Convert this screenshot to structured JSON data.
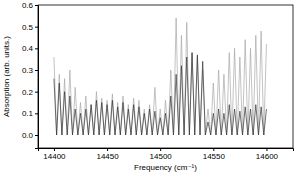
{
  "chart_data": {
    "type": "line",
    "x_label": "Frequency (cm⁻¹)",
    "y_label": "Absorption (arb. units.)",
    "xlim": [
      14385,
      14625
    ],
    "ylim": [
      -0.06,
      0.6
    ],
    "xticks": [
      14400,
      14450,
      14500,
      14550,
      14600
    ],
    "yticks": [
      {
        "value": 0,
        "label": "0.0"
      },
      {
        "value": 0.1,
        "label": "0.1"
      },
      {
        "value": 0.2,
        "label": "0.2"
      },
      {
        "value": 0.3,
        "label": "0.3"
      },
      {
        "value": 0.4,
        "label": "0.4"
      },
      {
        "value": 0.5,
        "label": "0.5"
      },
      {
        "value": 0.6,
        "label": "0.6"
      }
    ],
    "grid": false,
    "x": [
      14400,
      14402.5,
      14405,
      14407.5,
      14410,
      14412.5,
      14415,
      14417.5,
      14420,
      14422.5,
      14425,
      14427.5,
      14430,
      14432.5,
      14435,
      14437.5,
      14440,
      14442.5,
      14445,
      14447.5,
      14450,
      14452.5,
      14455,
      14457.5,
      14460,
      14462.5,
      14465,
      14467.5,
      14470,
      14472.5,
      14475,
      14477.5,
      14480,
      14482.5,
      14485,
      14487.5,
      14490,
      14492.5,
      14495,
      14497.5,
      14500,
      14502.5,
      14505,
      14507.5,
      14510,
      14512.5,
      14515,
      14517.5,
      14520,
      14522.5,
      14525,
      14527.5,
      14530,
      14532.5,
      14535,
      14537.5,
      14540,
      14542.5,
      14545,
      14547.5,
      14550,
      14552.5,
      14555,
      14557.5,
      14560,
      14562.5,
      14565,
      14567.5,
      14570,
      14572.5,
      14575,
      14577.5,
      14580,
      14582.5,
      14585,
      14587.5,
      14590,
      14592.5,
      14595,
      14597.5,
      14600
    ],
    "series": [
      {
        "color": "#a8a8a8",
        "values": [
          0.36,
          0,
          0.28,
          0,
          0.26,
          0,
          0.3,
          0,
          0.22,
          0,
          0.15,
          0,
          0.18,
          0,
          0.14,
          0,
          0.2,
          0,
          0.17,
          0,
          0.16,
          0,
          0.19,
          0,
          0.15,
          0,
          0.18,
          0,
          0.14,
          0,
          0.17,
          0,
          0.16,
          0,
          0.12,
          0,
          0.14,
          0,
          0.22,
          0,
          0.12,
          0,
          0.16,
          0,
          0.3,
          0,
          0.54,
          0,
          0.46,
          0,
          0.52,
          0,
          0.38,
          0,
          0.36,
          0,
          0.3,
          0,
          0.12,
          0,
          0.24,
          0,
          0.3,
          0,
          0.28,
          0,
          0.38,
          0,
          0.4,
          0,
          0.36,
          0,
          0.44,
          0,
          0.4,
          0,
          0.46,
          0,
          0.48,
          0,
          0.42
        ]
      },
      {
        "color": "#333333",
        "values": [
          0.26,
          0,
          0.24,
          0,
          0.2,
          0,
          0.18,
          0,
          0.12,
          0,
          0.1,
          0,
          0.12,
          0,
          0.14,
          0,
          0.16,
          0,
          0.15,
          0,
          0.14,
          0,
          0.16,
          0,
          0.13,
          0,
          0.15,
          0,
          0.12,
          0,
          0.14,
          0,
          0.13,
          0,
          0.1,
          0,
          0.12,
          0,
          0.11,
          0,
          0.08,
          0,
          0.1,
          0,
          0.18,
          0,
          0.28,
          0,
          0.32,
          0,
          0.36,
          0,
          0.38,
          0,
          0.37,
          0,
          0.34,
          0,
          0.06,
          0,
          0.1,
          0,
          0.12,
          0,
          0.1,
          0,
          0.14,
          0,
          0.12,
          0,
          0.11,
          0,
          0.13,
          0,
          0.12,
          0,
          0.14,
          0,
          0.13,
          0,
          0.12
        ]
      }
    ]
  }
}
